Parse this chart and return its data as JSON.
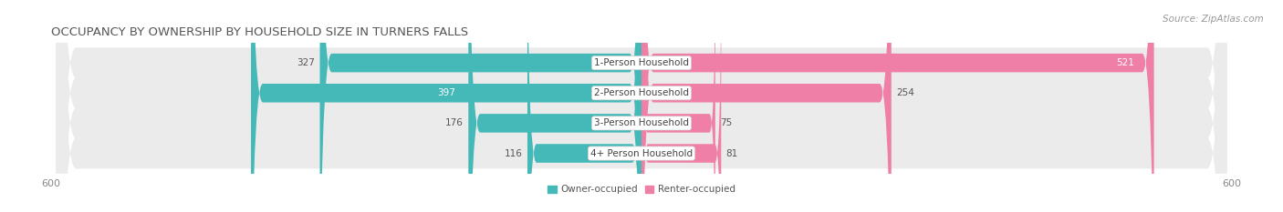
{
  "title": "OCCUPANCY BY OWNERSHIP BY HOUSEHOLD SIZE IN TURNERS FALLS",
  "source": "Source: ZipAtlas.com",
  "categories": [
    "1-Person Household",
    "2-Person Household",
    "3-Person Household",
    "4+ Person Household"
  ],
  "owner_values": [
    327,
    397,
    176,
    116
  ],
  "renter_values": [
    521,
    254,
    75,
    81
  ],
  "owner_color": "#45B8B8",
  "renter_color": "#F07FA8",
  "row_bg_color": "#EBEBEB",
  "axis_max": 600,
  "legend_owner": "Owner-occupied",
  "legend_renter": "Renter-occupied",
  "title_fontsize": 9.5,
  "source_fontsize": 7.5,
  "label_fontsize": 7.5,
  "tick_fontsize": 8,
  "background_color": "#FFFFFF",
  "bar_height": 0.62,
  "owner_label_inside_threshold": 350,
  "renter_label_inside_threshold": 450
}
